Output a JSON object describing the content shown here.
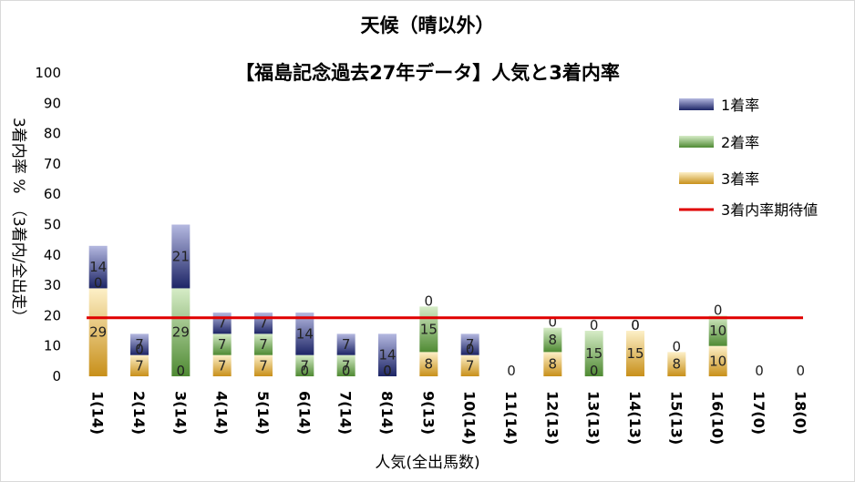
{
  "chart_data": {
    "type": "bar",
    "title": "天候（晴以外）",
    "subtitle": "【福島記念過去27年データ】人気と3着内率",
    "xlabel": "人気(全出馬数)",
    "ylabel": "3着内率 %　（3着内/全出走）",
    "ylim": [
      0,
      100
    ],
    "yticks": [
      "0",
      "10",
      "20",
      "30",
      "40",
      "50",
      "60",
      "70",
      "80",
      "90",
      "100"
    ],
    "categories": [
      "1(14)",
      "2(14)",
      "3(14)",
      "4(14)",
      "5(14)",
      "6(14)",
      "7(14)",
      "8(14)",
      "9(13)",
      "10(14)",
      "11(14)",
      "12(13)",
      "13(13)",
      "14(13)",
      "15(13)",
      "16(10)",
      "17(0)",
      "18(0)"
    ],
    "series": [
      {
        "name": "3着率",
        "color": "#d9a520",
        "values": [
          29,
          7,
          0,
          7,
          7,
          0,
          0,
          0,
          8,
          7,
          0,
          8,
          0,
          15,
          8,
          10,
          0,
          0
        ]
      },
      {
        "name": "2着率",
        "color": "#70ad47",
        "values": [
          0,
          0,
          29,
          7,
          7,
          7,
          7,
          0,
          15,
          0,
          0,
          8,
          15,
          0,
          0,
          10,
          0,
          0
        ]
      },
      {
        "name": "1着率",
        "color": "#2e3a8c",
        "values": [
          14,
          7,
          21,
          7,
          7,
          14,
          7,
          14,
          0,
          7,
          0,
          0,
          0,
          0,
          0,
          0,
          0,
          0
        ]
      }
    ],
    "labels": {
      "3着率": [
        "29",
        "7",
        "0",
        "7",
        "7",
        "0",
        "0",
        "0",
        "8",
        "7",
        "0",
        "8",
        "0",
        "15",
        "8",
        "10",
        "0",
        "0"
      ],
      "2着率": [
        "0",
        "0",
        "29",
        "7",
        "7",
        "7",
        "7",
        "0",
        "15",
        "0",
        "",
        "8",
        "15",
        "0",
        "0",
        "10",
        "",
        ""
      ],
      "1着率": [
        "14",
        "7",
        "21",
        "7",
        "7",
        "14",
        "7",
        "14",
        "0",
        "7",
        "",
        "0",
        "0",
        "0",
        "",
        "0",
        "",
        ""
      ]
    },
    "reference_line": {
      "name": "3着内率期待値",
      "value": 19.3,
      "color": "#e00000"
    },
    "legend": {
      "position": "top-right",
      "entries": [
        "1着率",
        "2着率",
        "3着率",
        "3着内率期待値"
      ]
    },
    "grid": false
  }
}
